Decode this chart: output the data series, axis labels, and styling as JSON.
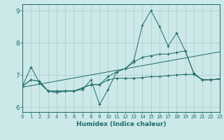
{
  "xlabel": "Humidex (Indice chaleur)",
  "bg_color": "#cce8e8",
  "line_color": "#1e6b6b",
  "grid_color": "#aacccc",
  "xlim": [
    0,
    23
  ],
  "ylim": [
    5.85,
    9.2
  ],
  "yticks": [
    6,
    7,
    8,
    9
  ],
  "xticks": [
    0,
    1,
    2,
    3,
    4,
    5,
    6,
    7,
    8,
    9,
    10,
    11,
    12,
    13,
    14,
    15,
    16,
    17,
    18,
    19,
    20,
    21,
    22,
    23
  ],
  "series1_x": [
    0,
    1,
    2,
    3,
    4,
    5,
    6,
    7,
    8,
    9,
    10,
    11,
    12,
    13,
    14,
    15,
    16,
    17,
    18,
    19,
    20,
    21,
    22,
    23
  ],
  "series1_y": [
    6.65,
    7.25,
    6.75,
    6.5,
    6.45,
    6.5,
    6.5,
    6.55,
    6.85,
    6.08,
    6.55,
    7.1,
    7.2,
    7.45,
    8.55,
    9.0,
    8.5,
    7.9,
    8.3,
    7.75,
    7.05,
    6.85,
    6.85,
    6.88
  ],
  "series2_x": [
    0,
    1,
    2,
    3,
    4,
    5,
    6,
    7,
    8,
    9,
    10,
    11,
    12,
    13,
    14,
    15,
    16,
    17,
    18,
    19,
    20,
    21,
    22,
    23
  ],
  "series2_y": [
    6.65,
    6.85,
    6.8,
    6.5,
    6.5,
    6.5,
    6.5,
    6.6,
    6.7,
    6.7,
    6.95,
    7.1,
    7.2,
    7.4,
    7.55,
    7.6,
    7.65,
    7.65,
    7.7,
    7.75,
    7.05,
    6.85,
    6.85,
    6.88
  ],
  "series3_x": [
    0,
    1,
    2,
    3,
    4,
    5,
    6,
    7,
    8,
    9,
    10,
    11,
    12,
    13,
    14,
    15,
    16,
    17,
    18,
    19,
    20,
    21,
    22,
    23
  ],
  "series3_y": [
    6.65,
    6.85,
    6.8,
    6.5,
    6.5,
    6.5,
    6.5,
    6.6,
    6.7,
    6.7,
    6.85,
    6.9,
    6.9,
    6.9,
    6.92,
    6.95,
    6.95,
    6.98,
    7.0,
    7.02,
    7.02,
    6.85,
    6.85,
    6.88
  ],
  "trend_x": [
    0,
    23
  ],
  "trend_y": [
    6.62,
    7.72
  ]
}
